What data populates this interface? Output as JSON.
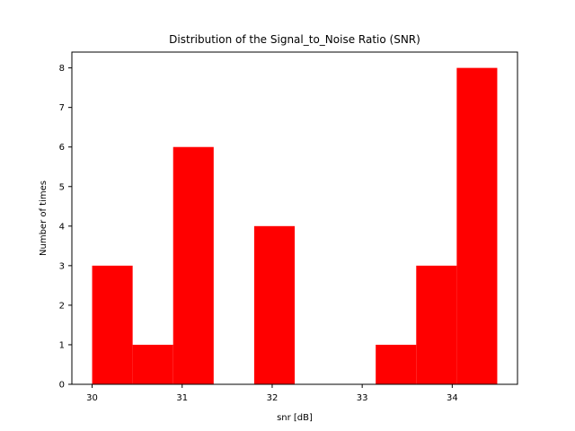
{
  "chart_data": {
    "type": "bar",
    "subtype": "histogram",
    "title": "Distribution of the Signal_to_Noise Ratio (SNR)",
    "xlabel": "snr [dB]",
    "ylabel": "Number of times",
    "bins": [
      {
        "start": 30.0,
        "end": 30.45,
        "count": 3
      },
      {
        "start": 30.45,
        "end": 30.9,
        "count": 1
      },
      {
        "start": 30.9,
        "end": 31.35,
        "count": 6
      },
      {
        "start": 31.35,
        "end": 31.8,
        "count": 0
      },
      {
        "start": 31.8,
        "end": 32.25,
        "count": 4
      },
      {
        "start": 32.25,
        "end": 32.7,
        "count": 0
      },
      {
        "start": 32.7,
        "end": 33.15,
        "count": 0
      },
      {
        "start": 33.15,
        "end": 33.6,
        "count": 1
      },
      {
        "start": 33.6,
        "end": 34.05,
        "count": 3
      },
      {
        "start": 34.05,
        "end": 34.5,
        "count": 8
      }
    ],
    "xlim": [
      29.775,
      34.725
    ],
    "ylim": [
      0,
      8.4
    ],
    "xticks": [
      30,
      31,
      32,
      33,
      34
    ],
    "yticks": [
      0,
      1,
      2,
      3,
      4,
      5,
      6,
      7,
      8
    ],
    "bar_color": "#ff0000",
    "grid": false,
    "legend": "none"
  }
}
